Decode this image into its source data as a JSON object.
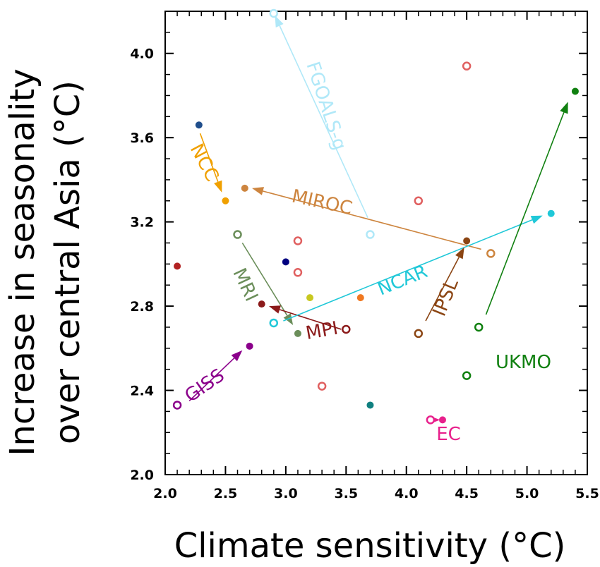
{
  "chart_data": {
    "type": "scatter",
    "xlabel": "Climate sensitivity (°C)",
    "ylabel": "Increase in seasonality over central Asia (°C)",
    "ylabel_lines": [
      "Increase in seasonality",
      "over central Asia (°C)"
    ],
    "xlim": [
      2.0,
      5.5
    ],
    "ylim": [
      2.0,
      4.2
    ],
    "x_ticks": [
      2.0,
      2.5,
      3.0,
      3.5,
      4.0,
      4.5,
      5.0,
      5.5
    ],
    "x_tick_labels": [
      "2.0",
      "2.5",
      "3.0",
      "3.5",
      "4.0",
      "4.5",
      "5.0",
      "5.5"
    ],
    "y_ticks": [
      2.0,
      2.4,
      2.8,
      3.2,
      3.6,
      4.0
    ],
    "y_tick_labels": [
      "2.0",
      "2.4",
      "2.8",
      "3.2",
      "3.6",
      "4.0"
    ],
    "grid": false,
    "points": [
      {
        "x": 2.1,
        "y": 2.99,
        "color": "#b22222",
        "filled": true
      },
      {
        "x": 2.28,
        "y": 3.66,
        "color": "#1f4e8c",
        "filled": true
      },
      {
        "x": 2.5,
        "y": 3.3,
        "color": "#f0a000",
        "filled": true
      },
      {
        "x": 2.66,
        "y": 3.36,
        "color": "#cd853f",
        "filled": true
      },
      {
        "x": 2.6,
        "y": 3.14,
        "color": "#6b8e5a",
        "filled": false
      },
      {
        "x": 2.8,
        "y": 2.81,
        "color": "#8b1a1a",
        "filled": true
      },
      {
        "x": 2.9,
        "y": 4.19,
        "color": "#b0e8f8",
        "filled": false
      },
      {
        "x": 2.9,
        "y": 2.72,
        "color": "#20c8d8",
        "filled": false
      },
      {
        "x": 3.0,
        "y": 3.01,
        "color": "#000080",
        "filled": true
      },
      {
        "x": 3.1,
        "y": 3.11,
        "color": "#e06060",
        "filled": false
      },
      {
        "x": 3.1,
        "y": 2.96,
        "color": "#e06060",
        "filled": false
      },
      {
        "x": 3.1,
        "y": 2.67,
        "color": "#6b8e5a",
        "filled": true
      },
      {
        "x": 3.2,
        "y": 2.84,
        "color": "#c8c820",
        "filled": true
      },
      {
        "x": 3.3,
        "y": 2.42,
        "color": "#e06060",
        "filled": false
      },
      {
        "x": 3.5,
        "y": 2.69,
        "color": "#8b1a1a",
        "filled": false
      },
      {
        "x": 3.62,
        "y": 2.84,
        "color": "#f07820",
        "filled": true
      },
      {
        "x": 3.7,
        "y": 3.14,
        "color": "#b0e8f8",
        "filled": false
      },
      {
        "x": 3.7,
        "y": 2.33,
        "color": "#108080",
        "filled": true
      },
      {
        "x": 4.1,
        "y": 3.3,
        "color": "#e06060",
        "filled": false
      },
      {
        "x": 4.1,
        "y": 2.67,
        "color": "#8b4513",
        "filled": false
      },
      {
        "x": 4.2,
        "y": 2.26,
        "color": "#e8208c",
        "filled": false
      },
      {
        "x": 4.3,
        "y": 2.26,
        "color": "#e8208c",
        "filled": true
      },
      {
        "x": 4.5,
        "y": 3.94,
        "color": "#e06060",
        "filled": false
      },
      {
        "x": 4.5,
        "y": 3.11,
        "color": "#8b4513",
        "filled": true
      },
      {
        "x": 4.5,
        "y": 2.47,
        "color": "#108010",
        "filled": false
      },
      {
        "x": 4.6,
        "y": 2.7,
        "color": "#108010",
        "filled": false
      },
      {
        "x": 4.7,
        "y": 3.05,
        "color": "#cd853f",
        "filled": false
      },
      {
        "x": 5.2,
        "y": 3.24,
        "color": "#20c8d8",
        "filled": true
      },
      {
        "x": 5.4,
        "y": 3.82,
        "color": "#108010",
        "filled": true
      },
      {
        "x": 2.1,
        "y": 2.33,
        "color": "#8b008b",
        "filled": false
      },
      {
        "x": 2.7,
        "y": 2.61,
        "color": "#8b008b",
        "filled": true
      }
    ],
    "arrows": [
      {
        "model": "FGOALS-g",
        "from": [
          3.68,
          3.22
        ],
        "to": [
          2.91,
          4.18
        ],
        "color": "#b0e8f8"
      },
      {
        "model": "NCC",
        "from": [
          2.29,
          3.62
        ],
        "to": [
          2.47,
          3.34
        ],
        "color": "#f0a000"
      },
      {
        "model": "MIROC",
        "from": [
          4.62,
          3.07
        ],
        "to": [
          2.72,
          3.36
        ],
        "color": "#cd853f"
      },
      {
        "model": "MRI",
        "from": [
          2.64,
          3.1
        ],
        "to": [
          3.06,
          2.71
        ],
        "color": "#6b8e5a"
      },
      {
        "model": "MPI",
        "from": [
          3.46,
          2.69
        ],
        "to": [
          2.86,
          2.8
        ],
        "color": "#8b1a1a"
      },
      {
        "model": "NCAR",
        "from": [
          2.98,
          2.73
        ],
        "to": [
          5.13,
          3.23
        ],
        "color": "#20c8d8"
      },
      {
        "model": "IPSL",
        "from": [
          4.16,
          2.73
        ],
        "to": [
          4.48,
          3.08
        ],
        "color": "#8b4513"
      },
      {
        "model": "UKMO",
        "from": [
          4.66,
          2.76
        ],
        "to": [
          5.34,
          3.77
        ],
        "color": "#108010"
      },
      {
        "model": "GISS",
        "from": [
          2.2,
          2.35
        ],
        "to": [
          2.64,
          2.59
        ],
        "color": "#8b008b"
      },
      {
        "model": "EC",
        "from": [
          4.23,
          2.26
        ],
        "to": [
          4.28,
          2.26
        ],
        "color": "#e8208c"
      }
    ],
    "labels": [
      {
        "text": "FGOALS-g",
        "x": 3.33,
        "y": 3.75,
        "rotation": 72,
        "color": "#b0e8f8"
      },
      {
        "text": "NCC",
        "x": 2.32,
        "y": 3.48,
        "rotation": 62,
        "color": "#f0a000"
      },
      {
        "text": "MIROC",
        "x": 3.3,
        "y": 3.29,
        "rotation": 12,
        "color": "#cd853f"
      },
      {
        "text": "MRI",
        "x": 2.66,
        "y": 2.9,
        "rotation": 65,
        "color": "#6b8e5a"
      },
      {
        "text": "MPI",
        "x": 3.3,
        "y": 2.68,
        "rotation": -10,
        "color": "#8b1a1a"
      },
      {
        "text": "NCAR",
        "x": 3.97,
        "y": 2.92,
        "rotation": -22,
        "color": "#20c8d8"
      },
      {
        "text": "IPSL",
        "x": 4.33,
        "y": 2.84,
        "rotation": -68,
        "color": "#8b4513"
      },
      {
        "text": "UKMO",
        "x": 4.97,
        "y": 2.53,
        "rotation": 0,
        "color": "#108010"
      },
      {
        "text": "GISS",
        "x": 2.33,
        "y": 2.42,
        "rotation": -35,
        "color": "#8b008b"
      },
      {
        "text": "EC",
        "x": 4.35,
        "y": 2.19,
        "rotation": 0,
        "color": "#e8208c"
      }
    ]
  }
}
